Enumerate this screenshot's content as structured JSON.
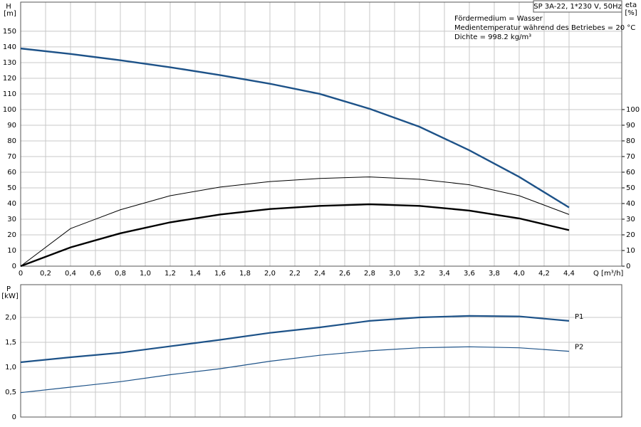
{
  "chart_data": [
    {
      "type": "line",
      "title": "SP 3A-22, 1*230 V, 50Hz",
      "annotations": [
        "Fördermedium = Wasser",
        "Medientemperatur während des Betriebes = 20 °C",
        "Dichte = 998.2 kg/m³"
      ],
      "y_label": "H",
      "y_unit": "[m]",
      "y2_label": "eta",
      "y2_unit": "[%]",
      "x_label": "Q [m³/h]",
      "x": [
        0,
        0.4,
        0.8,
        1.2,
        1.6,
        2.0,
        2.4,
        2.8,
        3.2,
        3.6,
        4.0,
        4.4
      ],
      "series": [
        {
          "color": "#1d5288",
          "line_width": 2.4,
          "values": [
            139,
            135.5,
            131.5,
            127,
            122,
            116.5,
            110,
            100.5,
            89,
            74,
            57,
            37.5
          ]
        },
        {
          "color": "#000000",
          "line_width": 1,
          "axis": "y2",
          "values": [
            0,
            24,
            36,
            45,
            50.5,
            54,
            56,
            57,
            55.5,
            52,
            45,
            33
          ]
        },
        {
          "color": "#000000",
          "line_width": 2.4,
          "axis": "y2",
          "values": [
            0,
            12,
            21,
            28,
            33,
            36.5,
            38.5,
            39.5,
            38.5,
            35.5,
            30.5,
            23
          ]
        }
      ],
      "xlim": [
        0,
        4.823
      ],
      "ylim": [
        0,
        168.6
      ],
      "y2lim": [
        0,
        168.6
      ],
      "xticks": [
        0,
        {
          "value": 0.2,
          "label": "0,2"
        },
        {
          "value": 0.4,
          "label": "0,4"
        },
        {
          "value": 0.6,
          "label": "0,6"
        },
        {
          "value": 0.8,
          "label": "0,8"
        },
        {
          "value": 1.0,
          "label": "1,0"
        },
        {
          "value": 1.2,
          "label": "1,2"
        },
        {
          "value": 1.4,
          "label": "1,4"
        },
        {
          "value": 1.6,
          "label": "1,6"
        },
        {
          "value": 1.8,
          "label": "1,8"
        },
        {
          "value": 2.0,
          "label": "2,0"
        },
        {
          "value": 2.2,
          "label": "2,2"
        },
        {
          "value": 2.4,
          "label": "2,4"
        },
        {
          "value": 2.6,
          "label": "2,6"
        },
        {
          "value": 2.8,
          "label": "2,8"
        },
        {
          "value": 3.0,
          "label": "3,0"
        },
        {
          "value": 3.2,
          "label": "3,2"
        },
        {
          "value": 3.4,
          "label": "3,4"
        },
        {
          "value": 3.6,
          "label": "3,6"
        },
        {
          "value": 3.8,
          "label": "3,8"
        },
        {
          "value": 4.0,
          "label": "4,0"
        },
        {
          "value": 4.2,
          "label": "4,2"
        },
        {
          "value": 4.4,
          "label": "4,4"
        }
      ],
      "yticks": [
        0,
        10,
        20,
        30,
        40,
        50,
        60,
        70,
        80,
        90,
        100,
        110,
        120,
        130,
        140,
        150
      ],
      "y2ticks": [
        0,
        10,
        20,
        30,
        40,
        50,
        60,
        70,
        80,
        90,
        100
      ],
      "grid": true
    },
    {
      "type": "line",
      "y_label": "P",
      "y_unit": "[kW]",
      "x": [
        0,
        0.4,
        0.8,
        1.2,
        1.6,
        2.0,
        2.4,
        2.8,
        3.2,
        3.6,
        4.0,
        4.4
      ],
      "series": [
        {
          "name": "P1",
          "color": "#1d5288",
          "line_width": 2.2,
          "values": [
            1.1,
            1.2,
            1.29,
            1.42,
            1.55,
            1.69,
            1.8,
            1.93,
            2.0,
            2.03,
            2.02,
            1.93
          ]
        },
        {
          "name": "P2",
          "color": "#1d5288",
          "line_width": 1.2,
          "values": [
            0.49,
            0.6,
            0.71,
            0.85,
            0.97,
            1.12,
            1.24,
            1.33,
            1.39,
            1.41,
            1.39,
            1.32
          ]
        }
      ],
      "xlim": [
        0,
        4.823
      ],
      "ylim": [
        0,
        2.657
      ],
      "yticks": [
        0,
        {
          "value": 0.5,
          "label": "0,5"
        },
        {
          "value": 1.0,
          "label": "1,0"
        },
        {
          "value": 1.5,
          "label": "1,5"
        },
        {
          "value": 2.0,
          "label": "2,0"
        }
      ],
      "grid": true
    }
  ]
}
